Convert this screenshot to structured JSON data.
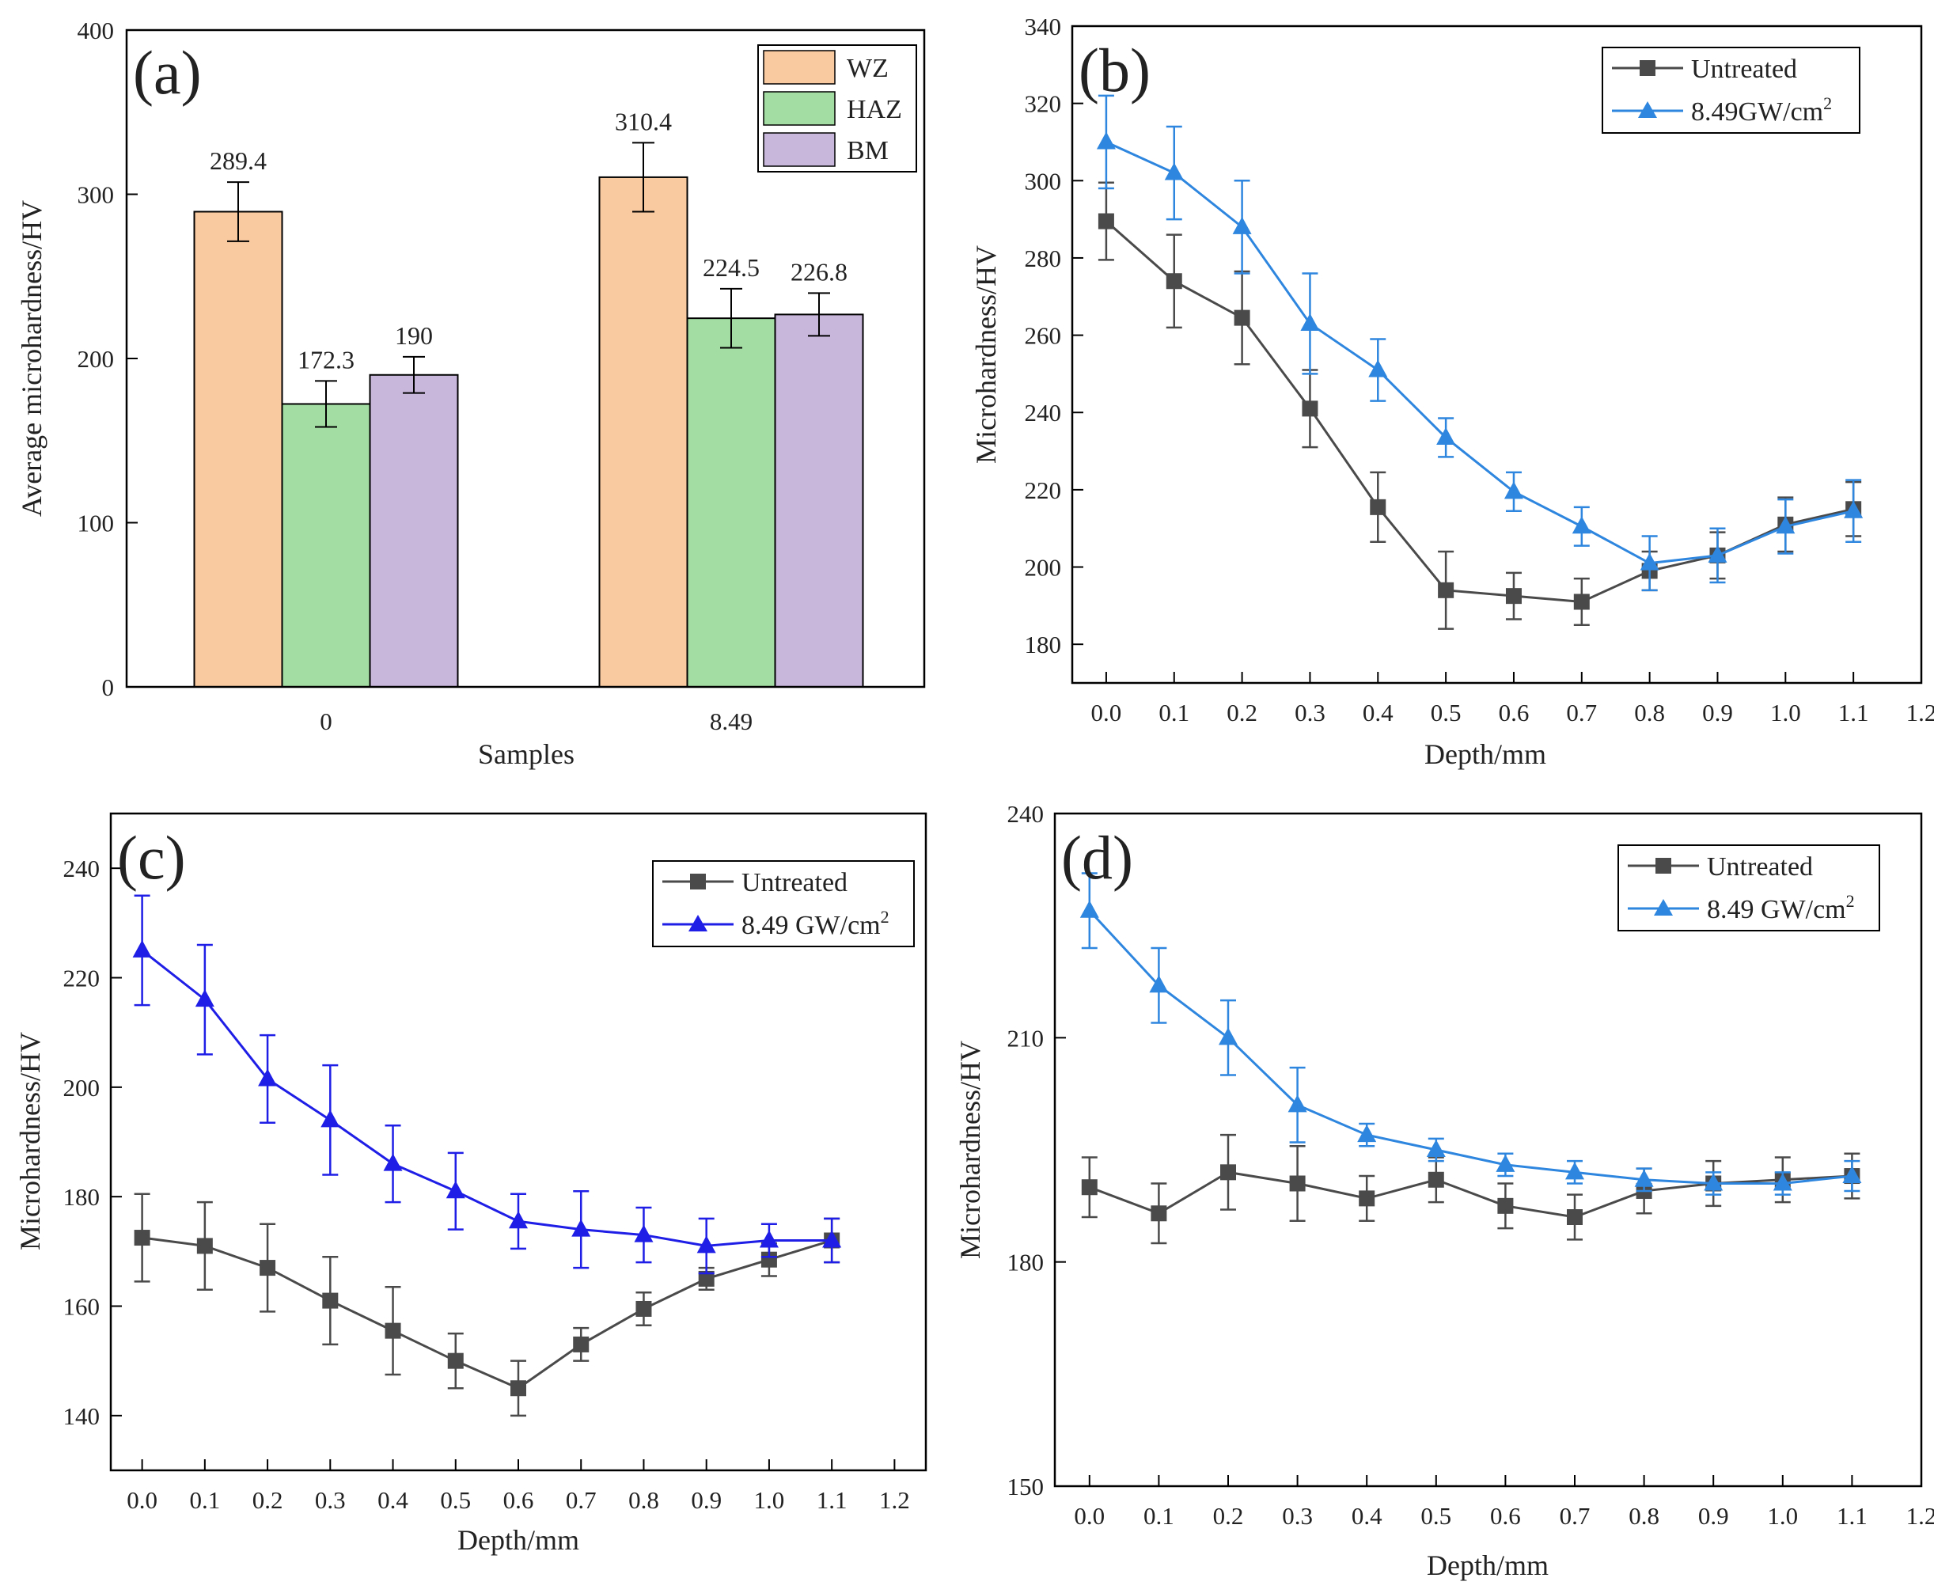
{
  "figure": {
    "colors": {
      "wz": "#F9C9A0",
      "haz": "#A3DDA3",
      "bm": "#C8B6DB",
      "untreated": "#4A4A4A",
      "treated_light": "#2E86DE",
      "treated_dark": "#1E1EE6",
      "axis": "#000000"
    }
  },
  "chart_data": [
    {
      "id": "a",
      "panel_label": "(a)",
      "type": "bar",
      "xlabel": "Samples",
      "ylabel": "Average microhardness/HV",
      "ylim": [
        0,
        400
      ],
      "yticks": [
        0,
        100,
        200,
        300,
        400
      ],
      "categories": [
        "0",
        "8.49"
      ],
      "legend_position": "top-right",
      "series": [
        {
          "name": "WZ",
          "color_key": "wz",
          "values": [
            289.4,
            310.4
          ],
          "errors": [
            18,
            21
          ],
          "labels": [
            "289.4",
            "310.4"
          ]
        },
        {
          "name": "HAZ",
          "color_key": "haz",
          "values": [
            172.3,
            224.5
          ],
          "errors": [
            14,
            18
          ],
          "labels": [
            "172.3",
            "224.5"
          ]
        },
        {
          "name": "BM",
          "color_key": "bm",
          "values": [
            190,
            226.8
          ],
          "errors": [
            11,
            13
          ],
          "labels": [
            "190",
            "226.8"
          ]
        }
      ]
    },
    {
      "id": "b",
      "panel_label": "(b)",
      "type": "line",
      "xlabel": "Depth/mm",
      "ylabel": "Microhardness/HV",
      "xlim": [
        -0.05,
        1.2
      ],
      "ylim": [
        170,
        340
      ],
      "xticks": [
        0.0,
        0.1,
        0.2,
        0.3,
        0.4,
        0.5,
        0.6,
        0.7,
        0.8,
        0.9,
        1.0,
        1.1,
        1.2
      ],
      "yticks": [
        180,
        200,
        220,
        240,
        260,
        280,
        300,
        320,
        340
      ],
      "legend_position": "top-right",
      "x": [
        0.0,
        0.1,
        0.2,
        0.3,
        0.4,
        0.5,
        0.6,
        0.7,
        0.8,
        0.9,
        1.0,
        1.1
      ],
      "series": [
        {
          "name": "Untreated",
          "color_key": "untreated",
          "marker": "square",
          "values": [
            289.5,
            274,
            264.5,
            241,
            215.5,
            194,
            192.5,
            191,
            199,
            203,
            211,
            215
          ],
          "errors": [
            10,
            12,
            12,
            10,
            9,
            10,
            6,
            6,
            5,
            6,
            7,
            7
          ]
        },
        {
          "name": "8.49GW/cm",
          "superscript": "2",
          "color_key": "treated_light",
          "marker": "triangle",
          "values": [
            310,
            302,
            288,
            263,
            251,
            233.5,
            219.5,
            210.5,
            201,
            203,
            210.5,
            214.5
          ],
          "errors": [
            12,
            12,
            12,
            13,
            8,
            5,
            5,
            5,
            7,
            7,
            7,
            8
          ]
        }
      ]
    },
    {
      "id": "c",
      "panel_label": "(c)",
      "type": "line",
      "xlabel": "Depth/mm",
      "ylabel": "Microhardness/HV",
      "xlim": [
        -0.05,
        1.25
      ],
      "ylim": [
        130,
        250
      ],
      "xticks": [
        0.0,
        0.1,
        0.2,
        0.3,
        0.4,
        0.5,
        0.6,
        0.7,
        0.8,
        0.9,
        1.0,
        1.1,
        1.2
      ],
      "yticks": [
        140,
        160,
        180,
        200,
        220,
        240
      ],
      "legend_position": "top-right",
      "x": [
        0.0,
        0.1,
        0.2,
        0.3,
        0.4,
        0.5,
        0.6,
        0.7,
        0.8,
        0.9,
        1.0,
        1.1
      ],
      "series": [
        {
          "name": "Untreated",
          "color_key": "untreated",
          "marker": "square",
          "values": [
            172.5,
            171,
            167,
            161,
            155.5,
            150,
            145,
            153,
            159.5,
            165,
            168.5,
            172
          ],
          "errors": [
            8,
            8,
            8,
            8,
            8,
            5,
            5,
            3,
            3,
            2,
            3,
            4
          ]
        },
        {
          "name": "8.49 GW/cm",
          "superscript": "2",
          "color_key": "treated_dark",
          "marker": "triangle",
          "values": [
            225,
            216,
            201.5,
            194,
            186,
            181,
            175.5,
            174,
            173,
            171,
            172,
            172
          ],
          "errors": [
            10,
            10,
            8,
            10,
            7,
            7,
            5,
            7,
            5,
            5,
            3,
            4
          ]
        }
      ]
    },
    {
      "id": "d",
      "panel_label": "(d)",
      "type": "line",
      "xlabel": "Depth/mm",
      "ylabel": "Microhardness/HV",
      "xlim": [
        -0.05,
        1.2
      ],
      "ylim": [
        150,
        240
      ],
      "xticks": [
        0.0,
        0.1,
        0.2,
        0.3,
        0.4,
        0.5,
        0.6,
        0.7,
        0.8,
        0.9,
        1.0,
        1.1,
        1.2
      ],
      "yticks": [
        150,
        180,
        210,
        240
      ],
      "legend_position": "top-right",
      "x": [
        0.0,
        0.1,
        0.2,
        0.3,
        0.4,
        0.5,
        0.6,
        0.7,
        0.8,
        0.9,
        1.0,
        1.1
      ],
      "series": [
        {
          "name": "Untreated",
          "color_key": "untreated",
          "marker": "square",
          "values": [
            190,
            186.5,
            192,
            190.5,
            188.5,
            191,
            187.5,
            186,
            189.5,
            190.5,
            191,
            191.5
          ],
          "errors": [
            4,
            4,
            5,
            5,
            3,
            3,
            3,
            3,
            3,
            3,
            3,
            3
          ]
        },
        {
          "name": "8.49 GW/cm",
          "superscript": "2",
          "color_key": "treated_light",
          "marker": "triangle",
          "values": [
            227,
            217,
            210,
            201,
            197,
            195,
            193,
            192,
            191,
            190.5,
            190.5,
            191.5
          ],
          "errors": [
            5,
            5,
            5,
            5,
            1.5,
            1.5,
            1.5,
            1.5,
            1.5,
            1.5,
            1.5,
            2
          ]
        }
      ]
    }
  ]
}
